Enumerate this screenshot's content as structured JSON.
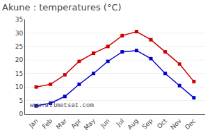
{
  "chart_data": {
    "type": "line",
    "title": "Akune : temperatures (°C)",
    "categories": [
      "Jan",
      "Feb",
      "Mar",
      "Apr",
      "May",
      "Jun",
      "Jul",
      "Aug",
      "Sep",
      "Oct",
      "Nov",
      "Dec"
    ],
    "series": [
      {
        "color": "#cc0000",
        "values": [
          10,
          11,
          14.5,
          19.5,
          22.5,
          25,
          29,
          30.5,
          27.5,
          23,
          18.5,
          12
        ]
      },
      {
        "color": "#0000cc",
        "values": [
          3,
          4,
          6.5,
          11,
          15,
          19.5,
          23,
          23.5,
          20.5,
          15,
          10.5,
          6
        ]
      }
    ],
    "marker": "square",
    "ylim": [
      0,
      35
    ],
    "yticks": [
      0,
      5,
      10,
      15,
      20,
      25,
      30,
      35
    ],
    "grid": "y",
    "annotations": [
      "www.allmetsat.com"
    ]
  }
}
